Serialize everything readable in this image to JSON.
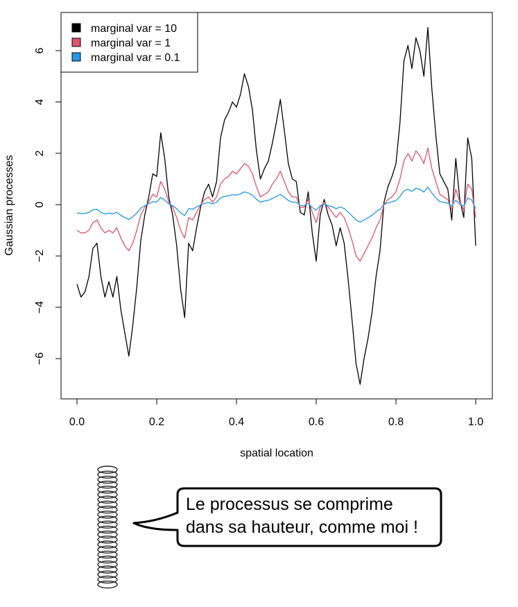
{
  "chart_data": {
    "type": "line",
    "title": "",
    "xlabel": "spatial location",
    "ylabel": "Gaussian processes",
    "xlim": [
      0,
      1
    ],
    "ylim": [
      -7,
      7
    ],
    "xticks": [
      0.0,
      0.2,
      0.4,
      0.6,
      0.8,
      1.0
    ],
    "xtick_labels": [
      "0.0",
      "0.2",
      "0.4",
      "0.6",
      "0.8",
      "1.0"
    ],
    "yticks": [
      -6,
      -4,
      -2,
      0,
      2,
      4,
      6
    ],
    "ytick_labels": [
      "−6",
      "−4",
      "−2",
      "0",
      "2",
      "4",
      "6"
    ],
    "grid": false,
    "legend_position": "top-left",
    "series": [
      {
        "name": "marginal var = 10",
        "color": "#000000",
        "x": [
          0.0,
          0.01,
          0.02,
          0.03,
          0.04,
          0.05,
          0.06,
          0.07,
          0.08,
          0.09,
          0.1,
          0.11,
          0.12,
          0.13,
          0.14,
          0.15,
          0.16,
          0.17,
          0.18,
          0.19,
          0.2,
          0.21,
          0.22,
          0.23,
          0.24,
          0.25,
          0.26,
          0.27,
          0.28,
          0.29,
          0.3,
          0.31,
          0.32,
          0.33,
          0.34,
          0.35,
          0.36,
          0.37,
          0.38,
          0.39,
          0.4,
          0.41,
          0.42,
          0.43,
          0.44,
          0.45,
          0.46,
          0.47,
          0.48,
          0.49,
          0.5,
          0.51,
          0.52,
          0.53,
          0.54,
          0.55,
          0.56,
          0.57,
          0.58,
          0.59,
          0.6,
          0.61,
          0.62,
          0.63,
          0.64,
          0.65,
          0.66,
          0.67,
          0.68,
          0.69,
          0.7,
          0.71,
          0.72,
          0.73,
          0.74,
          0.75,
          0.76,
          0.77,
          0.78,
          0.79,
          0.8,
          0.81,
          0.82,
          0.83,
          0.84,
          0.85,
          0.86,
          0.87,
          0.88,
          0.89,
          0.9,
          0.91,
          0.92,
          0.93,
          0.94,
          0.95,
          0.96,
          0.97,
          0.98,
          0.99,
          1.0
        ],
        "values": [
          -3.1,
          -3.6,
          -3.4,
          -2.8,
          -1.7,
          -1.5,
          -2.8,
          -3.6,
          -3.0,
          -3.6,
          -2.8,
          -4.1,
          -5.0,
          -5.9,
          -4.7,
          -3.2,
          -1.4,
          -0.4,
          0.3,
          1.2,
          1.1,
          2.8,
          1.8,
          0.3,
          -0.4,
          -1.6,
          -3.3,
          -4.4,
          -1.5,
          -1.8,
          -0.9,
          -0.1,
          0.5,
          0.8,
          0.3,
          0.9,
          2.6,
          3.3,
          3.6,
          4.0,
          3.8,
          4.3,
          5.1,
          4.6,
          3.7,
          2.1,
          1.0,
          1.4,
          1.7,
          2.4,
          3.2,
          4.1,
          2.9,
          1.6,
          1.0,
          0.9,
          -0.3,
          -0.4,
          0.5,
          -1.1,
          -2.2,
          -0.4,
          0.2,
          -0.4,
          -0.8,
          -1.6,
          -0.9,
          -1.5,
          -2.9,
          -4.5,
          -6.2,
          -7.0,
          -6.0,
          -5.2,
          -4.2,
          -2.8,
          -1.8,
          0.1,
          0.7,
          1.1,
          1.6,
          3.2,
          5.6,
          6.2,
          5.3,
          6.5,
          6.0,
          5.0,
          6.9,
          4.5,
          2.7,
          1.2,
          0.9,
          0.6,
          -0.6,
          1.8,
          0.2,
          -0.5,
          2.6,
          1.8,
          -1.6
        ]
      },
      {
        "name": "marginal var = 1",
        "color": "#DF536B",
        "x": [
          0.0,
          0.01,
          0.02,
          0.03,
          0.04,
          0.05,
          0.06,
          0.07,
          0.08,
          0.09,
          0.1,
          0.11,
          0.12,
          0.13,
          0.14,
          0.15,
          0.16,
          0.17,
          0.18,
          0.19,
          0.2,
          0.21,
          0.22,
          0.23,
          0.24,
          0.25,
          0.26,
          0.27,
          0.28,
          0.29,
          0.3,
          0.31,
          0.32,
          0.33,
          0.34,
          0.35,
          0.36,
          0.37,
          0.38,
          0.39,
          0.4,
          0.41,
          0.42,
          0.43,
          0.44,
          0.45,
          0.46,
          0.47,
          0.48,
          0.49,
          0.5,
          0.51,
          0.52,
          0.53,
          0.54,
          0.55,
          0.56,
          0.57,
          0.58,
          0.59,
          0.6,
          0.61,
          0.62,
          0.63,
          0.64,
          0.65,
          0.66,
          0.67,
          0.68,
          0.69,
          0.7,
          0.71,
          0.72,
          0.73,
          0.74,
          0.75,
          0.76,
          0.77,
          0.78,
          0.79,
          0.8,
          0.81,
          0.82,
          0.83,
          0.84,
          0.85,
          0.86,
          0.87,
          0.88,
          0.89,
          0.9,
          0.91,
          0.92,
          0.93,
          0.94,
          0.95,
          0.96,
          0.97,
          0.98,
          0.99,
          1.0
        ],
        "values": [
          -1.0,
          -1.1,
          -1.1,
          -1.0,
          -0.7,
          -0.6,
          -0.9,
          -1.1,
          -1.0,
          -1.1,
          -0.9,
          -1.3,
          -1.6,
          -1.8,
          -1.5,
          -1.0,
          -0.4,
          -0.1,
          0.1,
          0.4,
          0.3,
          0.9,
          0.6,
          0.1,
          -0.1,
          -0.5,
          -1.0,
          -1.3,
          -0.5,
          -0.6,
          -0.3,
          0.0,
          0.2,
          0.3,
          0.1,
          0.3,
          0.8,
          1.0,
          1.1,
          1.3,
          1.2,
          1.4,
          1.6,
          1.5,
          1.2,
          0.7,
          0.3,
          0.4,
          0.5,
          0.8,
          1.0,
          1.3,
          0.9,
          0.5,
          0.3,
          0.3,
          -0.1,
          -0.1,
          0.2,
          -0.3,
          -0.7,
          -0.1,
          0.1,
          -0.1,
          -0.3,
          -0.5,
          -0.3,
          -0.5,
          -0.9,
          -1.4,
          -2.0,
          -2.2,
          -1.9,
          -1.6,
          -1.3,
          -0.9,
          -0.6,
          0.0,
          0.2,
          0.3,
          0.5,
          1.0,
          1.7,
          2.0,
          1.7,
          2.1,
          1.9,
          1.6,
          2.2,
          1.4,
          0.9,
          0.4,
          0.3,
          0.2,
          -0.2,
          0.6,
          0.1,
          -0.2,
          0.8,
          0.6,
          -0.5
        ]
      },
      {
        "name": "marginal var = 0.1",
        "color": "#2297E6",
        "x": [
          0.0,
          0.01,
          0.02,
          0.03,
          0.04,
          0.05,
          0.06,
          0.07,
          0.08,
          0.09,
          0.1,
          0.11,
          0.12,
          0.13,
          0.14,
          0.15,
          0.16,
          0.17,
          0.18,
          0.19,
          0.2,
          0.21,
          0.22,
          0.23,
          0.24,
          0.25,
          0.26,
          0.27,
          0.28,
          0.29,
          0.3,
          0.31,
          0.32,
          0.33,
          0.34,
          0.35,
          0.36,
          0.37,
          0.38,
          0.39,
          0.4,
          0.41,
          0.42,
          0.43,
          0.44,
          0.45,
          0.46,
          0.47,
          0.48,
          0.49,
          0.5,
          0.51,
          0.52,
          0.53,
          0.54,
          0.55,
          0.56,
          0.57,
          0.58,
          0.59,
          0.6,
          0.61,
          0.62,
          0.63,
          0.64,
          0.65,
          0.66,
          0.67,
          0.68,
          0.69,
          0.7,
          0.71,
          0.72,
          0.73,
          0.74,
          0.75,
          0.76,
          0.77,
          0.78,
          0.79,
          0.8,
          0.81,
          0.82,
          0.83,
          0.84,
          0.85,
          0.86,
          0.87,
          0.88,
          0.89,
          0.9,
          0.91,
          0.92,
          0.93,
          0.94,
          0.95,
          0.96,
          0.97,
          0.98,
          0.99,
          1.0
        ],
        "values": [
          -0.32,
          -0.35,
          -0.34,
          -0.3,
          -0.2,
          -0.18,
          -0.3,
          -0.36,
          -0.33,
          -0.36,
          -0.3,
          -0.42,
          -0.5,
          -0.58,
          -0.47,
          -0.33,
          -0.14,
          -0.04,
          0.03,
          0.12,
          0.1,
          0.28,
          0.18,
          0.03,
          -0.04,
          -0.16,
          -0.32,
          -0.43,
          -0.15,
          -0.18,
          -0.09,
          -0.01,
          0.05,
          0.08,
          0.03,
          0.09,
          0.26,
          0.32,
          0.35,
          0.39,
          0.37,
          0.42,
          0.5,
          0.45,
          0.37,
          0.21,
          0.1,
          0.14,
          0.17,
          0.24,
          0.32,
          0.4,
          0.29,
          0.16,
          0.1,
          0.09,
          -0.03,
          -0.04,
          0.05,
          -0.11,
          -0.22,
          -0.04,
          0.02,
          -0.04,
          -0.08,
          -0.16,
          -0.09,
          -0.15,
          -0.29,
          -0.44,
          -0.6,
          -0.68,
          -0.59,
          -0.51,
          -0.41,
          -0.28,
          -0.18,
          0.01,
          0.07,
          0.11,
          0.16,
          0.32,
          0.54,
          0.6,
          0.52,
          0.64,
          0.59,
          0.49,
          0.68,
          0.45,
          0.27,
          0.12,
          0.09,
          0.06,
          -0.06,
          0.18,
          0.02,
          -0.05,
          0.26,
          0.18,
          -0.16
        ]
      }
    ]
  },
  "callout": {
    "line1": "Le processus se comprime",
    "line2": "dans sa hauteur, comme moi !"
  }
}
